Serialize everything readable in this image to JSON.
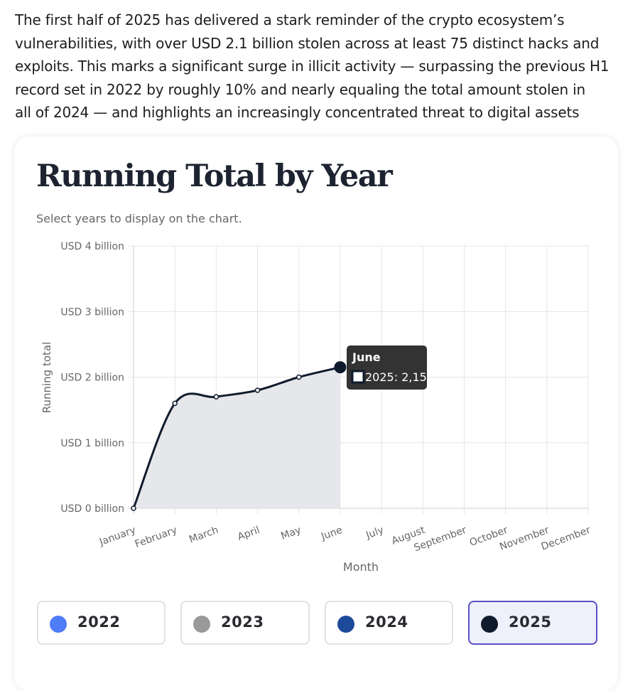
{
  "paragraph_lines": [
    "The first half of 2025 has delivered a stark reminder of the crypto ecosystem’s",
    "vulnerabilities, with over USD 2.1 billion stolen across at least 75 distinct hacks and",
    "exploits. This marks a significant surge in illicit activity — surpassing the previous H1",
    "record set in 2022 by roughly 10% and nearly equaling the total amount stolen in",
    "all of 2024 — and highlights an increasingly concentrated threat to digital assets"
  ],
  "chart_data": {
    "type": "line",
    "title": "Running Total by Year",
    "subtitle": "Select years to display on the chart.",
    "x_label": "Month",
    "y_label": "Running total",
    "categories": [
      "January",
      "February",
      "March",
      "April",
      "May",
      "June",
      "July",
      "August",
      "September",
      "October",
      "November",
      "December"
    ],
    "series": [
      {
        "name": "2025",
        "color": "#0f1b2d",
        "values": [
          0,
          1.6,
          1.7,
          1.8,
          2.0,
          2.15,
          null,
          null,
          null,
          null,
          null,
          null
        ]
      }
    ],
    "ylim": [
      0,
      4
    ],
    "yticks": [
      {
        "value": 0,
        "label": "USD 0 billion"
      },
      {
        "value": 1,
        "label": "USD 1 billion"
      },
      {
        "value": 2,
        "label": "USD 2 billion"
      },
      {
        "value": 3,
        "label": "USD 3 billion"
      },
      {
        "value": 4,
        "label": "USD 4 billion"
      }
    ],
    "grid": true,
    "area_fill": "#e6e7ea",
    "tooltip": {
      "title": "June",
      "label": "2025: 2,15"
    }
  },
  "year_buttons": [
    {
      "label": "2022",
      "color": "#4f7cf7",
      "selected": false
    },
    {
      "label": "2023",
      "color": "#999999",
      "selected": false
    },
    {
      "label": "2024",
      "color": "#1e4a9a",
      "selected": false
    },
    {
      "label": "2025",
      "color": "#0f1b2d",
      "selected": true
    }
  ]
}
